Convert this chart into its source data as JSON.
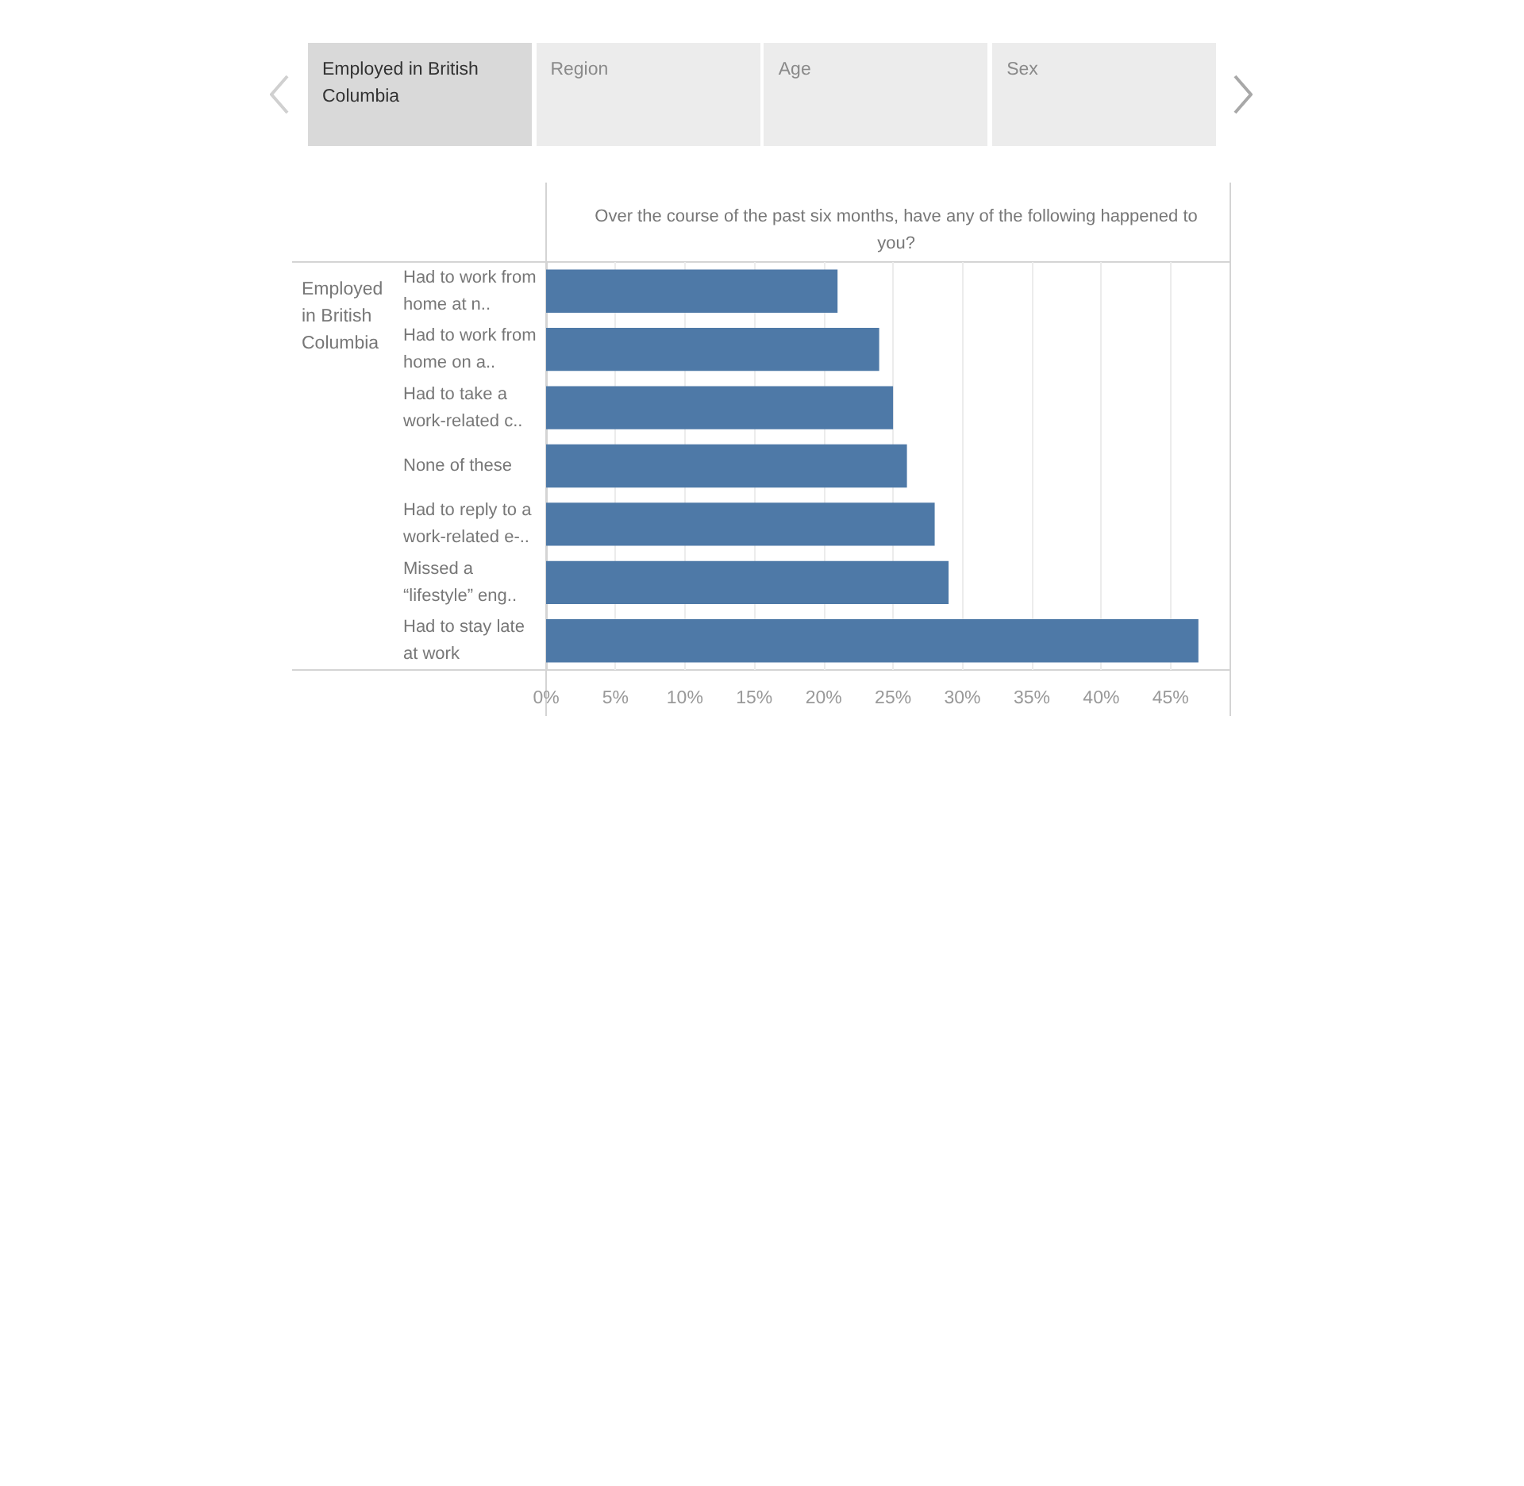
{
  "chart_data": {
    "type": "bar",
    "orientation": "horizontal",
    "title": "Over the course of the past six months, have any of the following happened to you?",
    "ylabel": "Employed in British Columbia",
    "categories": [
      "Had to work from home at n..",
      "Had to work from home on a..",
      "Had to take a work-related c..",
      "None of these",
      "Had to reply to a work-related e-..",
      "Missed a “lifestyle” eng..",
      "Had to stay late at work"
    ],
    "values": [
      21,
      24,
      25,
      26,
      28,
      29,
      47
    ],
    "color": "#4e79a7",
    "xlim": [
      0,
      49.3
    ],
    "xticks": [
      {
        "value": 0,
        "label": "0%"
      },
      {
        "value": 5,
        "label": "5%"
      },
      {
        "value": 10,
        "label": "10%"
      },
      {
        "value": 15,
        "label": "15%"
      },
      {
        "value": 20,
        "label": "20%"
      },
      {
        "value": 25,
        "label": "25%"
      },
      {
        "value": 30,
        "label": "30%"
      },
      {
        "value": 35,
        "label": "35%"
      },
      {
        "value": 40,
        "label": "40%"
      },
      {
        "value": 45,
        "label": "45%"
      }
    ],
    "grid": "x",
    "annotations": [
      "Employed in British Columbia",
      "Region",
      "Age",
      "Sex"
    ]
  }
}
